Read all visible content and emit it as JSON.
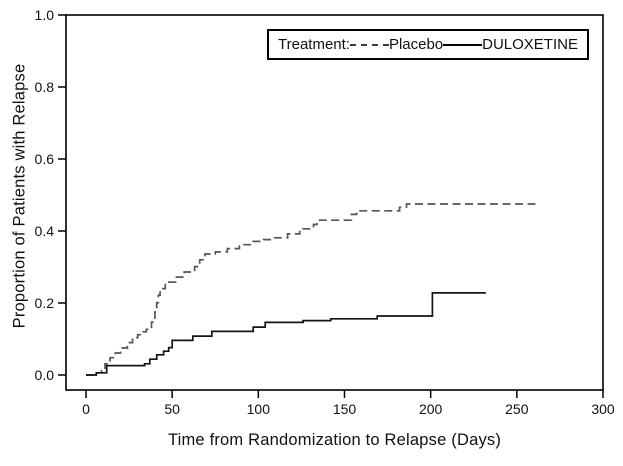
{
  "chart_data": {
    "type": "line",
    "subtype": "kaplan-meier-step",
    "title": "",
    "xlabel": "Time from Randomization to Relapse (Days)",
    "ylabel": "Proportion of Patients with Relapse",
    "xlim": [
      0,
      300
    ],
    "ylim": [
      0.0,
      1.0
    ],
    "xticks": [
      "0",
      "50",
      "100",
      "150",
      "200",
      "250",
      "300"
    ],
    "yticks": [
      "0.0",
      "0.2",
      "0.4",
      "0.6",
      "0.8",
      "1.0"
    ],
    "grid": "off",
    "frame_color": "#000000",
    "legend": {
      "title": "Treatment:",
      "position": "top-right-inside",
      "entries": [
        {
          "label": "Placebo",
          "style": "dashed"
        },
        {
          "label": "DULOXETINE",
          "style": "solid"
        }
      ]
    },
    "series": [
      {
        "name": "Placebo",
        "style": "dashed",
        "color": "#565656",
        "step_points": [
          [
            0,
            0
          ],
          [
            6,
            0.006
          ],
          [
            9,
            0.012
          ],
          [
            11,
            0.031
          ],
          [
            14,
            0.048
          ],
          [
            17,
            0.061
          ],
          [
            20,
            0.075
          ],
          [
            24,
            0.09
          ],
          [
            27,
            0.104
          ],
          [
            30,
            0.112
          ],
          [
            33,
            0.12
          ],
          [
            35,
            0.127
          ],
          [
            38,
            0.147
          ],
          [
            40,
            0.175
          ],
          [
            41,
            0.201
          ],
          [
            42,
            0.222
          ],
          [
            43,
            0.24
          ],
          [
            46,
            0.258
          ],
          [
            52,
            0.272
          ],
          [
            57,
            0.286
          ],
          [
            63,
            0.301
          ],
          [
            66,
            0.32
          ],
          [
            69,
            0.336
          ],
          [
            75,
            0.342
          ],
          [
            82,
            0.351
          ],
          [
            89,
            0.362
          ],
          [
            97,
            0.371
          ],
          [
            103,
            0.376
          ],
          [
            109,
            0.381
          ],
          [
            117,
            0.392
          ],
          [
            124,
            0.406
          ],
          [
            132,
            0.418
          ],
          [
            134,
            0.43
          ],
          [
            154,
            0.446
          ],
          [
            157,
            0.456
          ],
          [
            182,
            0.466
          ],
          [
            186,
            0.475
          ]
        ],
        "end_day": 262,
        "final_proportion": 0.475
      },
      {
        "name": "DULOXETINE",
        "style": "solid",
        "color": "#141414",
        "step_points": [
          [
            0,
            0
          ],
          [
            6,
            0.006
          ],
          [
            12,
            0.026
          ],
          [
            34,
            0.031
          ],
          [
            37,
            0.044
          ],
          [
            41,
            0.056
          ],
          [
            45,
            0.066
          ],
          [
            48,
            0.076
          ],
          [
            50,
            0.096
          ],
          [
            62,
            0.108
          ],
          [
            73,
            0.121
          ],
          [
            97,
            0.133
          ],
          [
            104,
            0.146
          ],
          [
            126,
            0.151
          ],
          [
            142,
            0.156
          ],
          [
            169,
            0.164
          ],
          [
            201,
            0.228
          ]
        ],
        "end_day": 232,
        "final_proportion": 0.228
      }
    ]
  }
}
